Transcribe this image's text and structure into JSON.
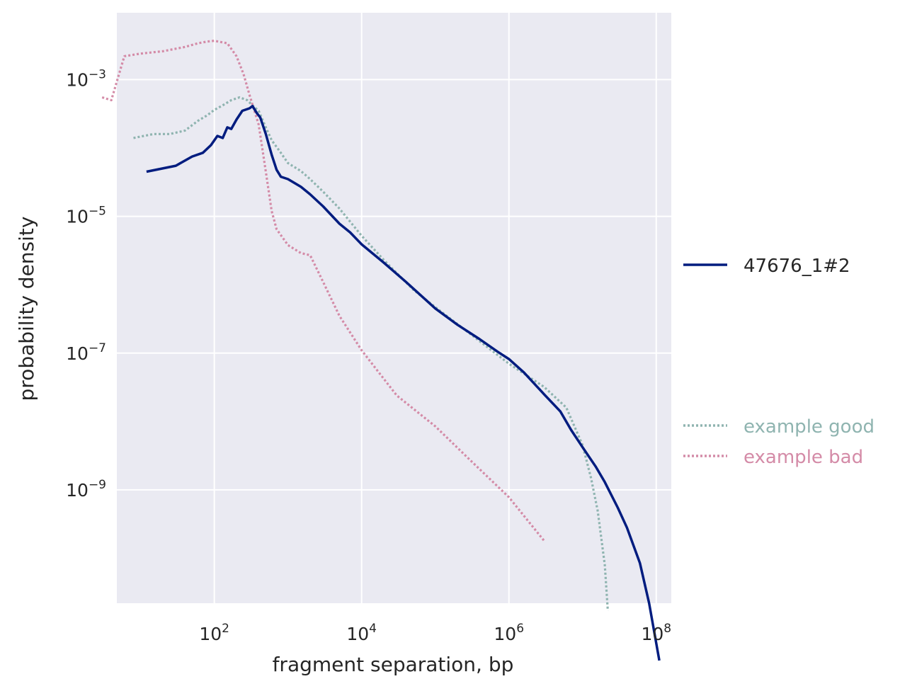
{
  "chart_data": {
    "type": "line",
    "xlabel": "fragment separation, bp",
    "ylabel": "probability density",
    "xscale": "log",
    "yscale": "log",
    "xlim": [
      4.75,
      160000000.0
    ],
    "ylim": [
      2.2e-11,
      0.0095
    ],
    "grid": true,
    "legend_placement": "right, outside plot",
    "x_ticks": [
      {
        "value": 100,
        "base": "10",
        "exp": "2"
      },
      {
        "value": 10000,
        "base": "10",
        "exp": "4"
      },
      {
        "value": 1000000,
        "base": "10",
        "exp": "6"
      },
      {
        "value": 100000000,
        "base": "10",
        "exp": "8"
      }
    ],
    "y_ticks": [
      {
        "value": 0.001,
        "base": "10",
        "exp": "−3"
      },
      {
        "value": 1e-05,
        "base": "10",
        "exp": "−5"
      },
      {
        "value": 1e-07,
        "base": "10",
        "exp": "−7"
      },
      {
        "value": 1e-09,
        "base": "10",
        "exp": "−9"
      }
    ],
    "series": [
      {
        "name": "47676_1#2",
        "color": "#001c7f",
        "style": "solid",
        "x": [
          12,
          30,
          50,
          70,
          90,
          110,
          130,
          150,
          170,
          200,
          240,
          300,
          330,
          380,
          420,
          500,
          600,
          700,
          800,
          1000,
          1500,
          2000,
          3000,
          5000,
          7000,
          10000,
          20000,
          40000,
          100000,
          200000,
          400000,
          700000,
          1000000,
          1600000,
          3000000,
          5000000,
          7000000,
          10000000,
          15000000,
          20000000,
          30000000,
          40000000,
          60000000,
          80000000,
          110000000
        ],
        "y": [
          4.5e-05,
          5.5e-05,
          7.5e-05,
          8.5e-05,
          0.00011,
          0.00015,
          0.00014,
          0.0002,
          0.00019,
          0.00026,
          0.00035,
          0.00038,
          0.00041,
          0.00032,
          0.00028,
          0.00016,
          8e-05,
          4.8e-05,
          3.8e-05,
          3.5e-05,
          2.7e-05,
          2.1e-05,
          1.4e-05,
          7.8e-06,
          5.8e-06,
          3.9e-06,
          2.1e-06,
          1.1e-06,
          4.5e-07,
          2.6e-07,
          1.6e-07,
          1.05e-07,
          8.2e-08,
          5.2e-08,
          2.5e-08,
          1.4e-08,
          7.5e-09,
          4.2e-09,
          2.2e-09,
          1.3e-09,
          5.5e-10,
          2.8e-10,
          8.5e-11,
          2.2e-11,
          3.2e-12
        ]
      },
      {
        "name": "example good",
        "color": "#8fb4b0",
        "style": "dotted",
        "x": [
          8,
          15,
          25,
          40,
          60,
          80,
          100,
          130,
          170,
          220,
          280,
          330,
          400,
          500,
          600,
          800,
          1000,
          1500,
          2000,
          3000,
          5000,
          10000,
          20000,
          50000,
          100000,
          300000,
          1000000,
          3000000,
          6000000,
          10000000,
          13000000,
          16000000,
          20000000,
          22000000
        ],
        "y": [
          0.00014,
          0.00016,
          0.00016,
          0.00018,
          0.00025,
          0.0003,
          0.00036,
          0.00042,
          0.0005,
          0.00055,
          0.0005,
          0.00042,
          0.00035,
          0.0002,
          0.00013,
          8.5e-05,
          6e-05,
          4.6e-05,
          3.5e-05,
          2.3e-05,
          1.3e-05,
          5.2e-06,
          2.3e-06,
          8.5e-07,
          4.7e-07,
          1.9e-07,
          7e-08,
          3.2e-08,
          1.6e-08,
          4.5e-09,
          1.5e-09,
          5e-10,
          8e-11,
          1.7e-11
        ]
      },
      {
        "name": "example bad",
        "color": "#d48ba7",
        "style": "dotted",
        "x": [
          3,
          4,
          6,
          10,
          20,
          40,
          60,
          80,
          100,
          150,
          200,
          250,
          300,
          400,
          500,
          600,
          700,
          1000,
          1500,
          2000,
          3000,
          5000,
          10000,
          30000,
          100000,
          300000,
          1000000,
          3000000
        ],
        "y": [
          0.00055,
          0.0005,
          0.0022,
          0.0024,
          0.0026,
          0.003,
          0.0034,
          0.0036,
          0.0037,
          0.0034,
          0.0022,
          0.0012,
          0.0006,
          0.00022,
          4.5e-05,
          1.2e-05,
          6.5e-06,
          3.8e-06,
          2.9e-06,
          2.7e-06,
          1.1e-06,
          3.5e-07,
          1.1e-07,
          2.4e-08,
          8.5e-09,
          2.7e-09,
          7.8e-10,
          1.8e-10
        ]
      }
    ]
  }
}
